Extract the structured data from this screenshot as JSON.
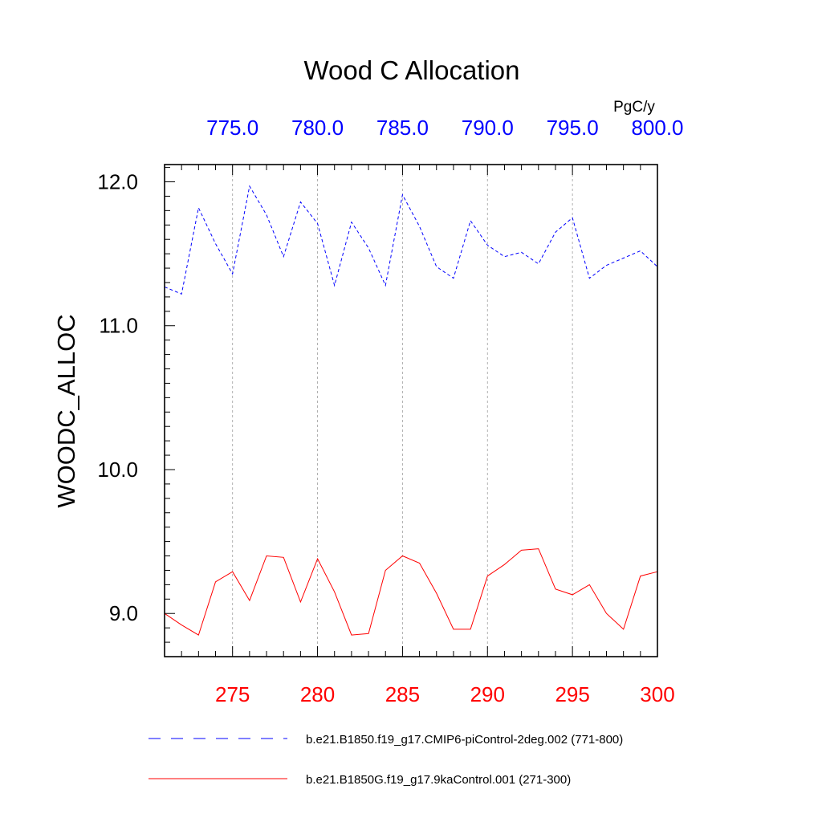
{
  "chart_data": {
    "type": "line",
    "title": "Wood C Allocation",
    "units": "PgC/y",
    "ylabel": "WOODC_ALLOC",
    "ylim": [
      8.7,
      12.12
    ],
    "yticks": [
      9.0,
      10.0,
      11.0,
      12.0
    ],
    "ytick_labels": [
      "9.0",
      "10.0",
      "11.0",
      "12.0"
    ],
    "bottom_axis": {
      "color": "#ff0000",
      "xlim": [
        271,
        300
      ],
      "ticks": [
        275,
        280,
        285,
        290,
        295,
        300
      ],
      "tick_labels": [
        "275",
        "280",
        "285",
        "290",
        "295",
        "300"
      ]
    },
    "top_axis": {
      "color": "#0000ff",
      "xlim": [
        771,
        800
      ],
      "ticks": [
        775,
        780,
        785,
        790,
        795,
        800
      ],
      "tick_labels": [
        "775.0",
        "780.0",
        "785.0",
        "790.0",
        "795.0",
        "800.0"
      ]
    },
    "grid": "vertical dashed at major ticks",
    "legend_placement": "bottom",
    "series": [
      {
        "name": "b.e21.B1850.f19_g17.CMIP6-piControl-2deg.002 (771-800)",
        "axis": "top",
        "color": "#0000ff",
        "style": "dashed",
        "x": [
          771,
          772,
          773,
          774,
          775,
          776,
          777,
          778,
          779,
          780,
          781,
          782,
          783,
          784,
          785,
          786,
          787,
          788,
          789,
          790,
          791,
          792,
          793,
          794,
          795,
          796,
          797,
          798,
          799,
          800
        ],
        "values": [
          11.27,
          11.22,
          11.82,
          11.57,
          11.36,
          11.97,
          11.77,
          11.48,
          11.86,
          11.71,
          11.28,
          11.72,
          11.54,
          11.28,
          11.91,
          11.69,
          11.41,
          11.33,
          11.73,
          11.56,
          11.48,
          11.51,
          11.43,
          11.65,
          11.75,
          11.33,
          11.42,
          11.47,
          11.52,
          11.41
        ]
      },
      {
        "name": "b.e21.B1850G.f19_g17.9kaControl.001 (271-300)",
        "axis": "bottom",
        "color": "#ff0000",
        "style": "solid",
        "x": [
          271,
          272,
          273,
          274,
          275,
          276,
          277,
          278,
          279,
          280,
          281,
          282,
          283,
          284,
          285,
          286,
          287,
          288,
          289,
          290,
          291,
          292,
          293,
          294,
          295,
          296,
          297,
          298,
          299,
          300
        ],
        "values": [
          9.0,
          8.92,
          8.85,
          9.22,
          9.29,
          9.09,
          9.4,
          9.39,
          9.08,
          9.38,
          9.15,
          8.85,
          8.86,
          9.3,
          9.4,
          9.35,
          9.14,
          8.89,
          8.89,
          9.26,
          9.34,
          9.44,
          9.45,
          9.17,
          9.13,
          9.2,
          9.0,
          8.89,
          9.26,
          9.29
        ]
      }
    ]
  }
}
